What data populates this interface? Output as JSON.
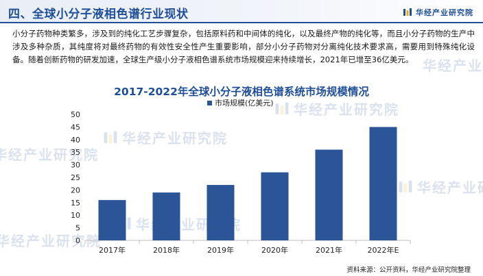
{
  "header": {
    "section_title": "四、全球小分子液相色谱行业现状",
    "brand_name": "华经产业研究院",
    "logo_icon": "brand-logo-icon"
  },
  "intro_text": "小分子药物种类繁多，涉及到的纯化工艺步骤复杂，包括原料药和中间体的纯化，以及最终产物的纯化等，而且小分子药物的生产中涉及多种杂质，其纯度将对最终药物的有效性安全性产生重要影响，部分小分子药物对分离纯化技术要求高，需要用到特殊纯化设备。随着创新药物的研发加速，全球生产级小分子液相色谱系统市场规模迎来持续增长，2021年已增至36亿美元。",
  "watermark_text": "华经产业研究院",
  "footer": {
    "source": "资料来源：公开资料，华经产业研究院整理"
  },
  "colors": {
    "brand_blue": "#1f4e99",
    "bar_blue": "#2b5597"
  },
  "chart_data": {
    "type": "bar",
    "title": "2017-2022年全球小分子液相色谱系统市场规模情况",
    "categories": [
      "2017年",
      "2018年",
      "2019年",
      "2020年",
      "2021年",
      "2022年E"
    ],
    "series": [
      {
        "name": "市场规模(亿美元)",
        "values": [
          16,
          19,
          22,
          27,
          36,
          45
        ]
      }
    ],
    "xlabel": "",
    "ylabel": "",
    "ylim": [
      0,
      50
    ],
    "yticks": [
      0,
      5,
      10,
      15,
      20,
      25,
      30,
      35,
      40,
      45,
      50
    ],
    "grid": false,
    "legend_position": "top-center"
  }
}
